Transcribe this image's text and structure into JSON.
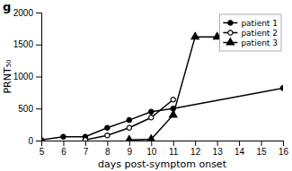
{
  "chart_data": {
    "type": "line",
    "xlabel": "days post-symptom onset",
    "ylabel": "PRNT₅₀",
    "annotations": [
      "g"
    ],
    "series": [
      {
        "name": "patient 1",
        "color": "#000000",
        "marker": "circle",
        "x": [
          5,
          6,
          7,
          8,
          9,
          10,
          11,
          16
        ],
        "values": [
          10,
          60,
          60,
          200,
          320,
          450,
          500,
          820
        ]
      },
      {
        "name": "patient 2",
        "color": "#000000",
        "marker": "open-circle",
        "x": [
          7,
          8,
          9,
          10,
          11
        ],
        "values": [
          10,
          80,
          200,
          360,
          640
        ]
      },
      {
        "name": "patient 3",
        "color": "#000000",
        "marker": "triangle",
        "x": [
          9,
          10,
          11,
          12,
          13
        ],
        "values": [
          10,
          20,
          400,
          1620,
          1620
        ]
      }
    ],
    "xlim": [
      5,
      16
    ],
    "xticks": [
      5,
      6,
      7,
      8,
      9,
      10,
      11,
      12,
      13,
      14,
      15,
      16
    ],
    "ylim": [
      0,
      2000
    ],
    "yticks": [
      0,
      500,
      1000,
      1500,
      2000
    ],
    "grid": false,
    "legend": "upper right"
  }
}
